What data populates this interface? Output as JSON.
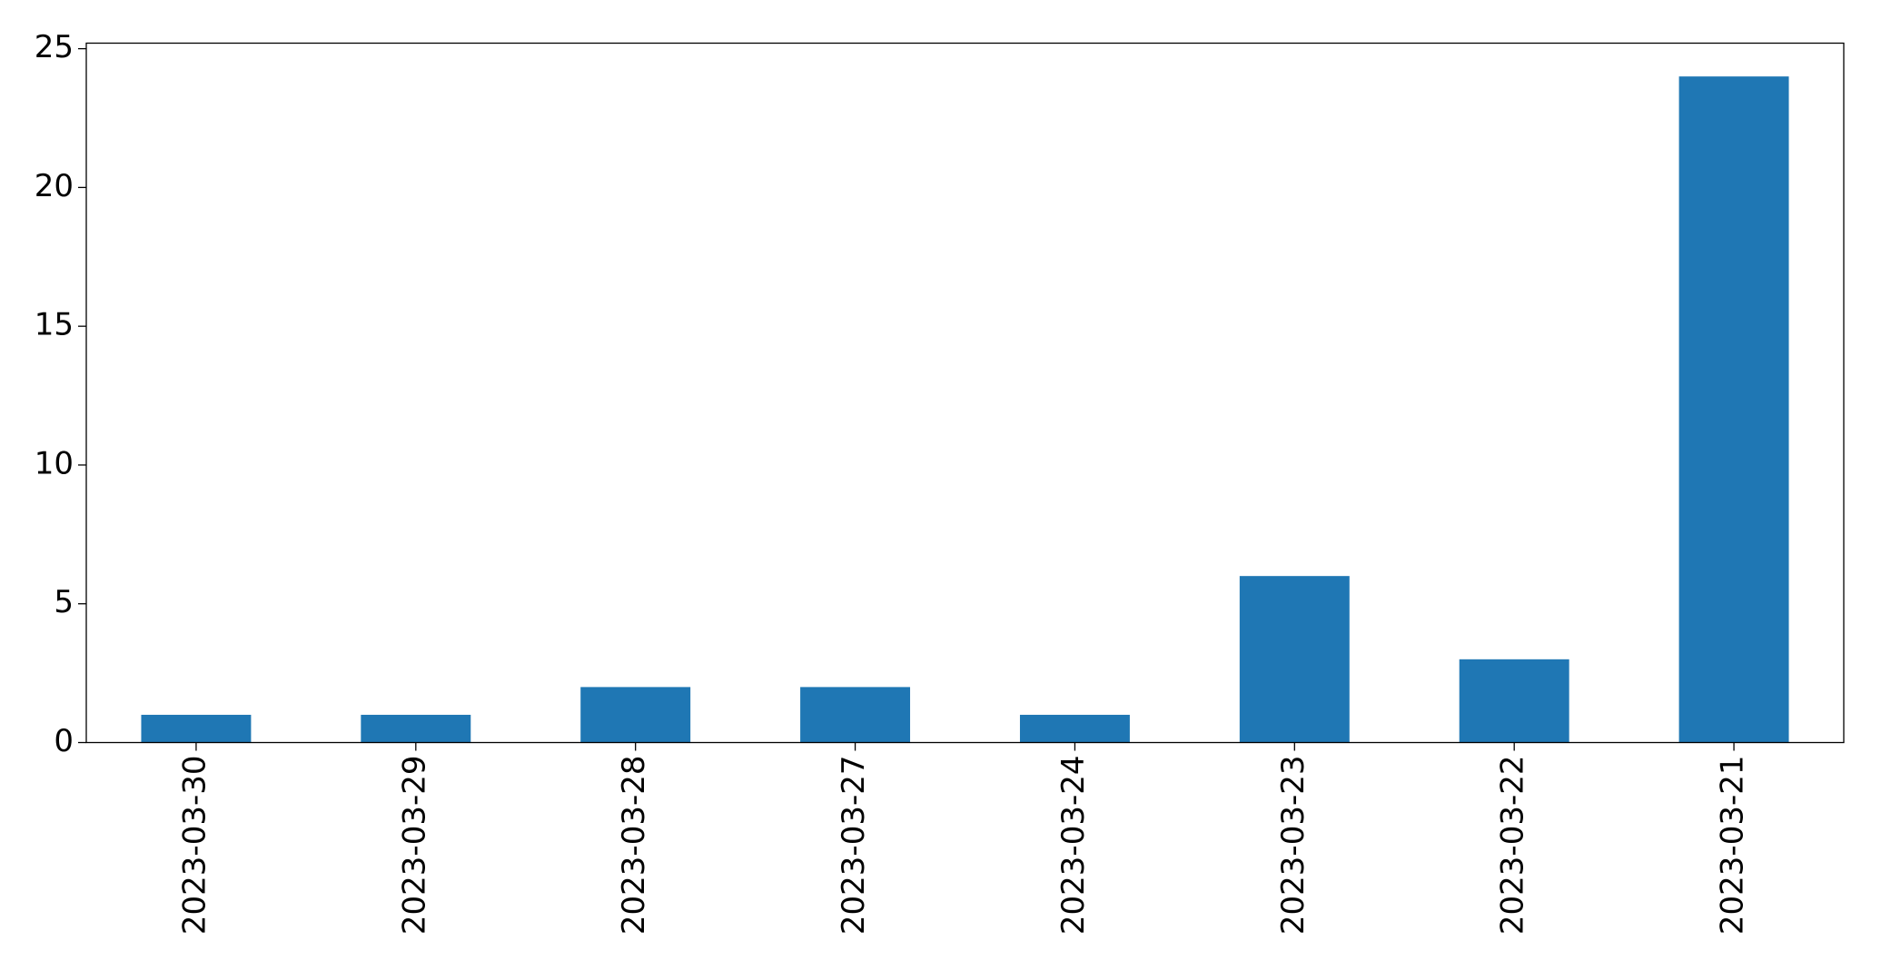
{
  "chart_data": {
    "type": "bar",
    "categories": [
      "2023-03-30",
      "2023-03-29",
      "2023-03-28",
      "2023-03-27",
      "2023-03-24",
      "2023-03-23",
      "2023-03-22",
      "2023-03-21"
    ],
    "values": [
      1,
      1,
      2,
      2,
      1,
      6,
      3,
      24
    ],
    "color": "#1f77b4",
    "ylim": [
      0,
      25.2
    ],
    "yticks": [
      0,
      5,
      10,
      15,
      20,
      25
    ],
    "grid": false
  }
}
